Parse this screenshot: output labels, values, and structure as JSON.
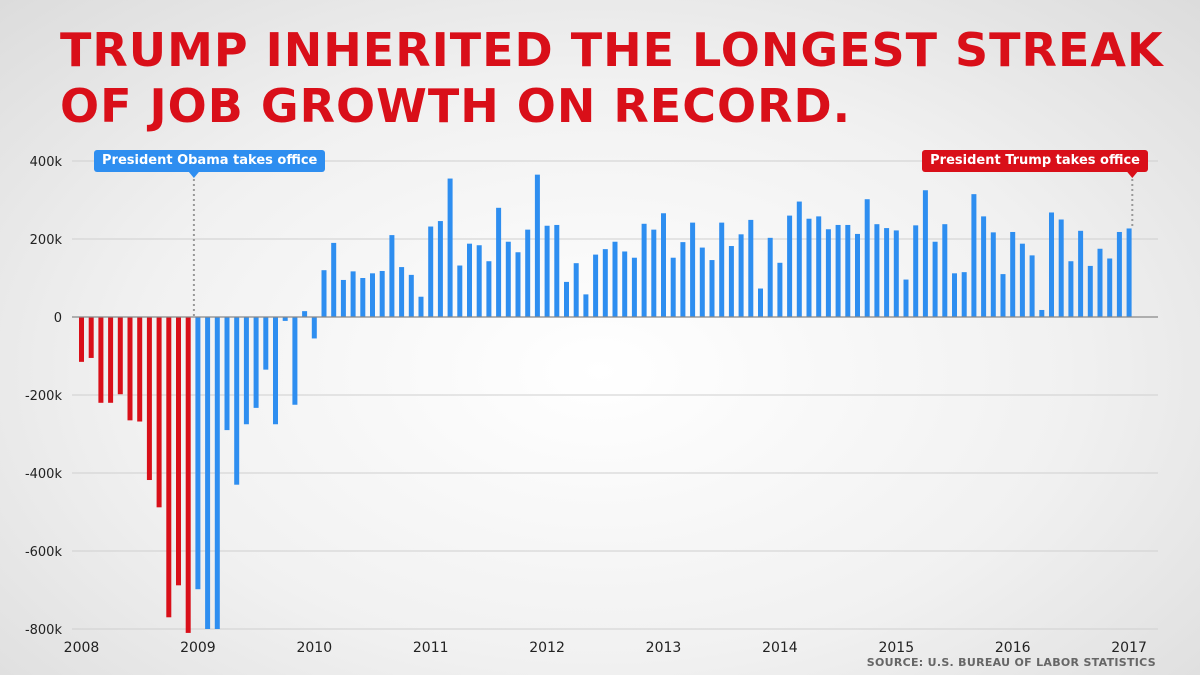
{
  "headline": {
    "line1": "TRUMP INHERITED THE LONGEST STREAK",
    "line2": "OF JOB GROWTH ON RECORD."
  },
  "annotations": {
    "obama": "President Obama takes office",
    "trump": "President Trump takes office"
  },
  "source": "SOURCE: U.S. BUREAU OF LABOR STATISTICS",
  "colors": {
    "headline": "#d90f19",
    "bush_bars": "#d90f19",
    "obama_bars": "#2e8ef0",
    "trump_bars": "#d90f19",
    "grid": "#cfcfcf",
    "baseline": "#888888"
  },
  "chart_data": {
    "type": "bar",
    "title": "",
    "xlabel": "",
    "ylabel": "",
    "ylim": [
      -800,
      400
    ],
    "y_ticks": [
      400,
      200,
      0,
      -200,
      -400,
      -600,
      -800
    ],
    "y_tick_labels": [
      "400k",
      "200k",
      "0",
      "-200k",
      "-400k",
      "-600k",
      "-800k"
    ],
    "x_ticks": [
      "2008",
      "2009",
      "2010",
      "2011",
      "2012",
      "2013",
      "2014",
      "2015",
      "2016",
      "2017"
    ],
    "start_label": "2008-01",
    "grid": true,
    "obama_first_index": 12,
    "trump_first_index": 109,
    "values": [
      -115,
      -105,
      -220,
      -220,
      -198,
      -265,
      -268,
      -418,
      -488,
      -770,
      -688,
      -810,
      -698,
      -800,
      -800,
      -290,
      -430,
      -275,
      -233,
      -135,
      -275,
      -10,
      -225,
      15,
      -55,
      120,
      190,
      95,
      117,
      100,
      112,
      118,
      210,
      128,
      108,
      52,
      232,
      246,
      355,
      132,
      188,
      184,
      143,
      280,
      193,
      166,
      224,
      365,
      234,
      236,
      90,
      138,
      58,
      160,
      174,
      193,
      168,
      152,
      239,
      224,
      266,
      152,
      192,
      242,
      178,
      146,
      242,
      182,
      212,
      249,
      73,
      203,
      139,
      260,
      296,
      252,
      258,
      225,
      236,
      236,
      213,
      302,
      238,
      228,
      222,
      96,
      235,
      325,
      193,
      238,
      112,
      115,
      315,
      258,
      217,
      110,
      218,
      188,
      158,
      18,
      268,
      250,
      143,
      221,
      131,
      175,
      150,
      218,
      227
    ]
  }
}
